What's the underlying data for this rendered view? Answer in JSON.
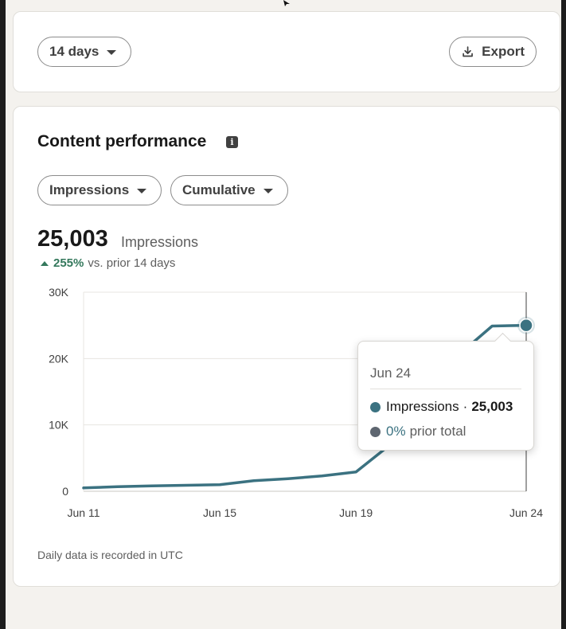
{
  "filters": {
    "range_label": "14 days",
    "export_label": "Export"
  },
  "content_performance": {
    "title": "Content performance",
    "metric_dropdown": "Impressions",
    "mode_dropdown": "Cumulative",
    "total_value": "25,003",
    "total_label": "Impressions",
    "delta_value": "255%",
    "delta_label": "vs. prior 14 days",
    "footnote": "Daily data is recorded in UTC"
  },
  "tooltip": {
    "date": "Jun 24",
    "series_label": "Impressions",
    "series_value": "25,003",
    "prior_value": "0%",
    "prior_label": "prior total"
  },
  "colors": {
    "line": "#3b7281",
    "prior": "#5e6670",
    "accent_up": "#34785c"
  },
  "chart_data": {
    "type": "line",
    "x": [
      "Jun 11",
      "Jun 12",
      "Jun 13",
      "Jun 14",
      "Jun 15",
      "Jun 16",
      "Jun 17",
      "Jun 18",
      "Jun 19",
      "Jun 20",
      "Jun 21",
      "Jun 22",
      "Jun 23",
      "Jun 24"
    ],
    "series": [
      {
        "name": "Impressions",
        "values": [
          500,
          700,
          800,
          900,
          1000,
          1600,
          1900,
          2300,
          2900,
          7000,
          12500,
          20500,
          24900,
          25003
        ]
      }
    ],
    "x_tick_labels": [
      "Jun 11",
      "Jun 15",
      "Jun 19",
      "Jun 24"
    ],
    "y_tick_labels": [
      "0",
      "10K",
      "20K",
      "30K"
    ],
    "ylim": [
      0,
      30000
    ],
    "grid": true,
    "highlight_x": "Jun 24"
  }
}
